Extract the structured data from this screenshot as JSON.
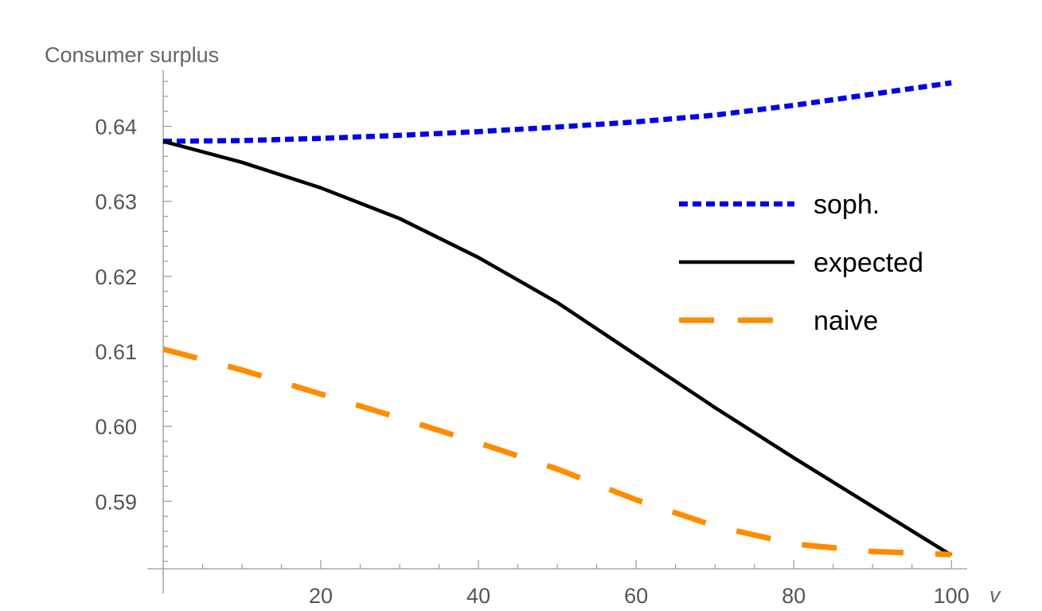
{
  "chart_data": {
    "type": "line",
    "title": "",
    "ylabel": "Consumer surplus",
    "xlabel": "v",
    "xlim": [
      0,
      102
    ],
    "ylim": [
      0.581,
      0.6475
    ],
    "x_ticks": [
      20,
      40,
      60,
      80,
      100
    ],
    "x_tick_labels": [
      "20",
      "40",
      "60",
      "80",
      "100"
    ],
    "y_ticks": [
      0.59,
      0.6,
      0.61,
      0.62,
      0.63,
      0.64
    ],
    "y_tick_labels": [
      "0.59",
      "0.60",
      "0.61",
      "0.62",
      "0.63",
      "0.64"
    ],
    "grid": false,
    "legend_position": "right",
    "x": [
      0,
      10,
      20,
      30,
      40,
      50,
      60,
      70,
      80,
      90,
      100
    ],
    "series": [
      {
        "name": "soph.",
        "color": "#0000e6",
        "style": "dotted",
        "values": [
          0.638,
          0.6381,
          0.6384,
          0.6388,
          0.6393,
          0.6399,
          0.6406,
          0.6415,
          0.6428,
          0.6443,
          0.6458
        ]
      },
      {
        "name": "expected",
        "color": "#000000",
        "style": "solid",
        "values": [
          0.638,
          0.6352,
          0.6318,
          0.6277,
          0.6225,
          0.6165,
          0.6095,
          0.6025,
          0.5958,
          0.5893,
          0.5828
        ]
      },
      {
        "name": "naive",
        "color": "#ff8c00",
        "style": "dashed",
        "values": [
          0.6103,
          0.6075,
          0.6043,
          0.6011,
          0.5978,
          0.5943,
          0.5902,
          0.5867,
          0.5843,
          0.5833,
          0.5829
        ]
      }
    ]
  }
}
